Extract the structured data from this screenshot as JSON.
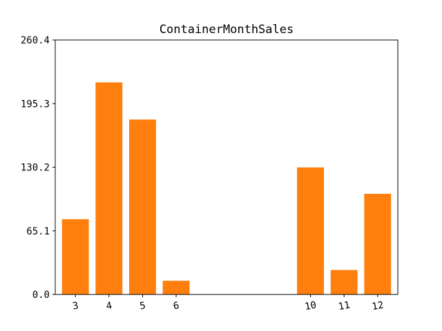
{
  "chart_data": {
    "type": "bar",
    "title": "ContainerMonthSales",
    "xlabel": "",
    "ylabel": "",
    "x": [
      3,
      4,
      5,
      6,
      10,
      11,
      12
    ],
    "categories": [
      "3",
      "4",
      "5",
      "6",
      "10",
      "11",
      "12"
    ],
    "values": [
      77,
      217,
      179,
      14,
      130,
      25,
      103
    ],
    "xlim": [
      2.4,
      12.6
    ],
    "ylim": [
      0,
      260.4
    ],
    "yticks": [
      0.0,
      65.1,
      130.2,
      195.3,
      260.4
    ],
    "ytick_labels": [
      "0.0",
      "65.1",
      "130.2",
      "195.3",
      "260.4"
    ],
    "xtick_rotation_deg": -10,
    "bar_width": 0.8,
    "grid": false,
    "legend": "none",
    "color": "#ff7f0e"
  }
}
